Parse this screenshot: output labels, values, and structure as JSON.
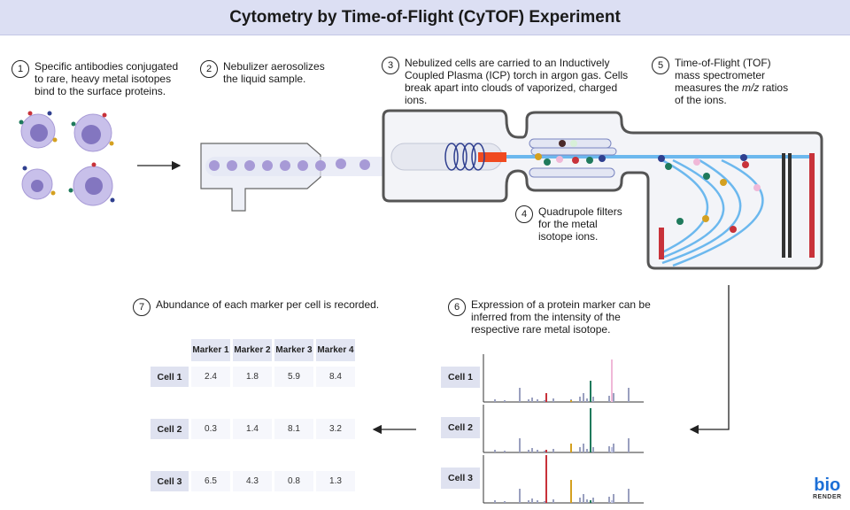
{
  "title": "Cytometry by Time-of-Flight (CyTOF) Experiment",
  "steps": [
    {
      "num": "1",
      "text": "Specific antibodies conjugated to rare, heavy metal isotopes bind to the surface proteins."
    },
    {
      "num": "2",
      "text": "Nebulizer aerosolizes the liquid sample."
    },
    {
      "num": "3",
      "text": "Nebulized cells are carried to an Inductively Coupled Plasma (ICP) torch in argon gas. Cells break apart into clouds of vaporized, charged ions."
    },
    {
      "num": "4",
      "text": "Quadrupole filters for the metal isotope ions."
    },
    {
      "num": "5",
      "text_before": "Time-of-Flight (TOF) mass spectrometer measures the ",
      "text_italic": "m/z",
      "text_after": " ratios of the ions."
    },
    {
      "num": "6",
      "text": "Expression of a protein marker can be inferred from the intensity of the respective rare metal isotope."
    },
    {
      "num": "7",
      "text": "Abundance of each marker per cell is recorded."
    }
  ],
  "table": {
    "columns": [
      "Marker 1",
      "Marker 2",
      "Marker 3",
      "Marker 4"
    ],
    "rows": [
      {
        "label": "Cell 1",
        "values": [
          "2.4",
          "1.8",
          "5.9",
          "8.4"
        ]
      },
      {
        "label": "Cell 2",
        "values": [
          "0.3",
          "1.4",
          "8.1",
          "3.2"
        ]
      },
      {
        "label": "Cell 3",
        "values": [
          "6.5",
          "4.3",
          "0.8",
          "1.3"
        ]
      }
    ]
  },
  "spectra": {
    "labels": [
      "Cell 1",
      "Cell 2",
      "Cell 3"
    ]
  },
  "colors": {
    "title_bg": "#dcdff3",
    "beam": "#6cb8ee",
    "red": "#c8323a",
    "green": "#1f7a5c",
    "gold": "#d4a020",
    "pink": "#f0b8d8",
    "navy": "#2f3f8f",
    "cell": "#a79ad6",
    "logo": "#1c6fd6"
  },
  "logo": {
    "word": "bio",
    "sub": "RENDER"
  }
}
